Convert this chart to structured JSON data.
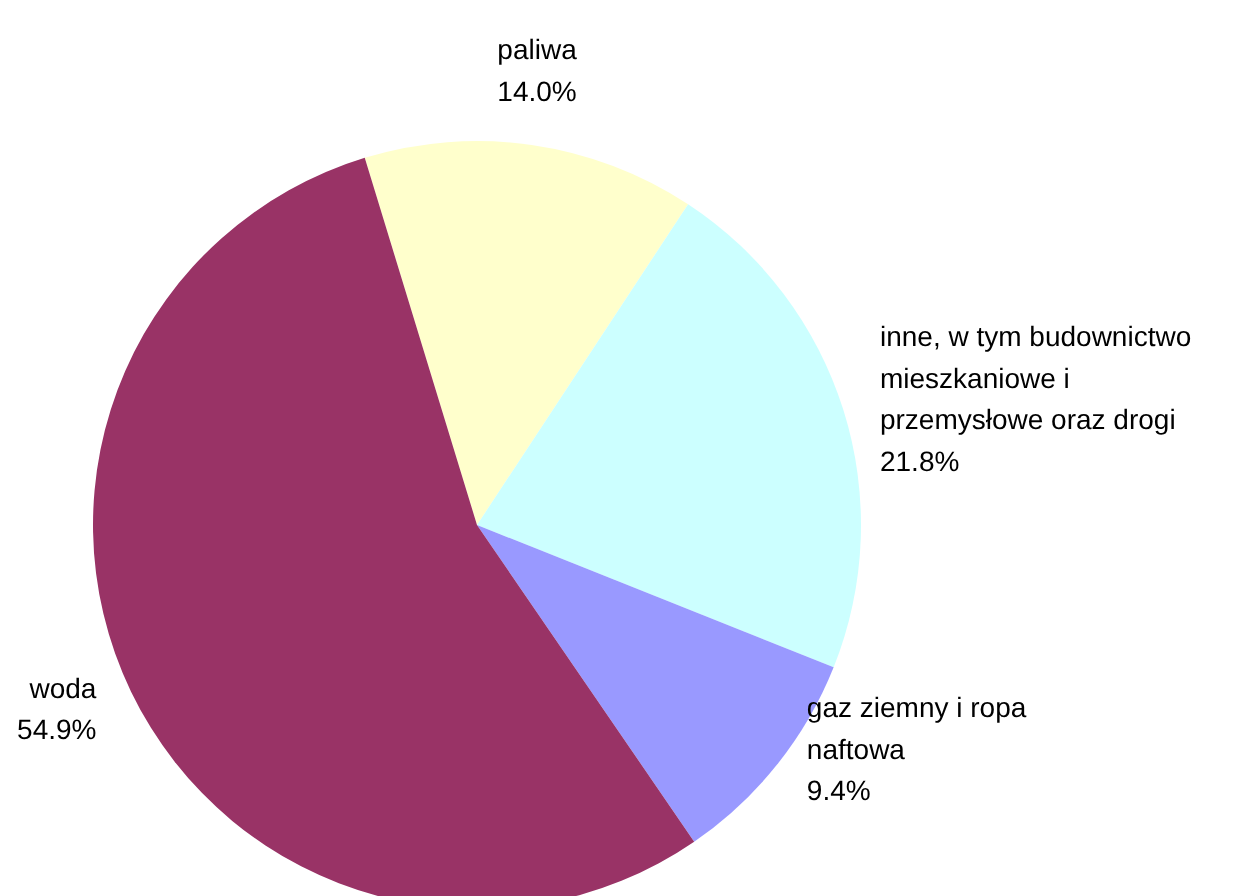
{
  "chart_data": {
    "type": "pie",
    "categories": [
      "paliwa",
      "inne, w tym budownictwo\nmieszkaniowe i\nprzemysłowe oraz drogi",
      "gaz ziemny i ropa\nnaftowa",
      "woda"
    ],
    "values": [
      14.0,
      21.8,
      9.4,
      54.9
    ],
    "colors": [
      "#ffffcc",
      "#ccffff",
      "#9999ff",
      "#993366"
    ],
    "value_labels": [
      "14.0%",
      "21.8%",
      "9.4%",
      "54.9%"
    ]
  }
}
